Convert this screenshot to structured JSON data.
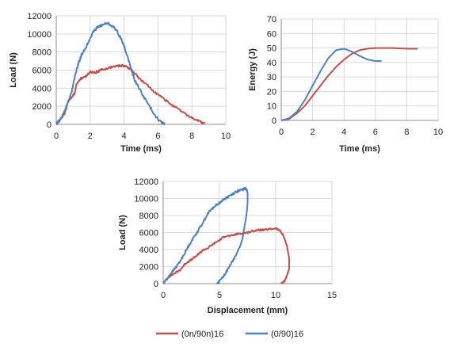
{
  "colors": {
    "red_series": "#c0504d",
    "blue_series": "#4f81bd",
    "grid": "#d9d9d9",
    "axis": "#8c8c8c"
  },
  "legend": {
    "items": [
      {
        "label": "(0n/90n)16",
        "color": "#c0504d"
      },
      {
        "label": "(0/90)16",
        "color": "#4f81bd"
      }
    ]
  },
  "chart_data": [
    {
      "id": "load_time",
      "type": "line",
      "title": "",
      "xlabel": "Time (ms)",
      "ylabel": "Load (N)",
      "xlim": [
        0,
        10
      ],
      "ylim": [
        0,
        12000
      ],
      "xticks": [
        0,
        2,
        4,
        6,
        8,
        10
      ],
      "yticks": [
        0,
        2000,
        4000,
        6000,
        8000,
        10000,
        12000
      ],
      "ytick_labels": [
        "0",
        "2000",
        "4000",
        "6000",
        "8000",
        "10000",
        "12000"
      ],
      "grid": true,
      "series": [
        {
          "name": "(0n/90n)16",
          "color": "#c0504d",
          "x": [
            0,
            0.3,
            0.5,
            0.7,
            0.9,
            1.1,
            1.2,
            1.4,
            1.6,
            1.8,
            2.0,
            2.3,
            2.6,
            3.0,
            3.4,
            3.8,
            4.0,
            4.3,
            4.7,
            5.0,
            5.5,
            6.0,
            6.5,
            7.0,
            7.5,
            8.0,
            8.5,
            8.75
          ],
          "y": [
            0,
            700,
            1200,
            2500,
            3000,
            3500,
            4500,
            5000,
            5200,
            5400,
            5800,
            5700,
            6000,
            6200,
            6400,
            6500,
            6500,
            6200,
            5500,
            4900,
            4100,
            3300,
            2600,
            1900,
            1300,
            700,
            300,
            100
          ]
        },
        {
          "name": "(0/90)16",
          "color": "#4f81bd",
          "x": [
            0,
            0.3,
            0.6,
            0.9,
            1.1,
            1.3,
            1.5,
            1.8,
            2.1,
            2.4,
            2.7,
            3.0,
            3.3,
            3.6,
            4.0,
            4.3,
            4.6,
            5.0,
            5.4,
            5.8,
            6.1,
            6.3,
            6.4
          ],
          "y": [
            0,
            700,
            2000,
            3500,
            5300,
            6700,
            7700,
            8700,
            10000,
            10700,
            11000,
            11200,
            10900,
            10300,
            8700,
            6900,
            5000,
            3600,
            2300,
            1100,
            400,
            100,
            0
          ]
        }
      ]
    },
    {
      "id": "energy_time",
      "type": "line",
      "title": "",
      "xlabel": "Time (ms)",
      "ylabel": "Energy (J)",
      "xlim": [
        0,
        10
      ],
      "ylim": [
        0,
        70
      ],
      "xticks": [
        0,
        2,
        4,
        6,
        8,
        10
      ],
      "yticks": [
        0,
        10,
        20,
        30,
        40,
        50,
        60,
        70
      ],
      "ytick_labels": [
        "0",
        "10",
        "20",
        "30",
        "40",
        "50",
        "60",
        "70"
      ],
      "grid": true,
      "series": [
        {
          "name": "(0n/90n)16",
          "color": "#c0504d",
          "x": [
            0,
            0.5,
            1.0,
            1.5,
            2.0,
            2.5,
            3.0,
            3.5,
            4.0,
            4.5,
            5.0,
            5.5,
            6.0,
            7.0,
            8.0,
            8.7
          ],
          "y": [
            0,
            1,
            5,
            10,
            17,
            24,
            31,
            37,
            42,
            46,
            48.5,
            49.5,
            50,
            50,
            49.5,
            49.5
          ]
        },
        {
          "name": "(0/90)16",
          "color": "#4f81bd",
          "x": [
            0,
            0.5,
            1.0,
            1.5,
            2.0,
            2.5,
            3.0,
            3.5,
            4.0,
            4.5,
            5.0,
            5.5,
            6.0,
            6.4
          ],
          "y": [
            0,
            1.5,
            6,
            14,
            24,
            34,
            43,
            48.5,
            49.5,
            47.5,
            44.5,
            42,
            41,
            41
          ]
        }
      ]
    },
    {
      "id": "load_displacement",
      "type": "line",
      "title": "",
      "xlabel": "Displacement (mm)",
      "ylabel": "Load (N)",
      "xlim": [
        0,
        15
      ],
      "ylim": [
        0,
        12000
      ],
      "xticks": [
        0,
        5,
        10,
        15
      ],
      "yticks": [
        0,
        2000,
        4000,
        6000,
        8000,
        10000,
        12000
      ],
      "ytick_labels": [
        "0",
        "2000",
        "4000",
        "6000",
        "8000",
        "10000",
        "12000"
      ],
      "grid": true,
      "series": [
        {
          "name": "(0n/90n)16",
          "color": "#c0504d",
          "x": [
            0,
            0.5,
            1.0,
            1.5,
            2.0,
            2.5,
            3.0,
            3.5,
            4.0,
            4.5,
            5.0,
            5.5,
            6.0,
            6.5,
            7.0,
            7.5,
            8.0,
            8.5,
            9.0,
            9.5,
            10.0,
            10.4,
            10.7,
            11.0,
            11.2,
            11.2,
            11.0,
            10.8,
            10.5
          ],
          "y": [
            0,
            800,
            1200,
            1600,
            2400,
            2800,
            3300,
            3900,
            4200,
            4700,
            5100,
            5600,
            5600,
            5800,
            5900,
            6000,
            6200,
            6300,
            6300,
            6400,
            6500,
            6200,
            5600,
            4400,
            3000,
            1800,
            900,
            300,
            0
          ]
        },
        {
          "name": "(0/90)16",
          "color": "#4f81bd",
          "x": [
            0,
            0.5,
            1.0,
            1.5,
            2.0,
            2.5,
            3.0,
            3.5,
            4.0,
            4.5,
            5.0,
            5.5,
            6.0,
            6.5,
            7.0,
            7.3,
            7.5,
            7.5,
            7.4,
            7.2,
            7.0,
            6.6,
            6.2,
            5.8,
            5.4,
            5.0,
            4.8
          ],
          "y": [
            0,
            900,
            1700,
            2600,
            3800,
            5000,
            6000,
            7100,
            8300,
            9000,
            9500,
            10000,
            10400,
            10800,
            11000,
            11200,
            10800,
            9500,
            8000,
            6500,
            5000,
            3700,
            2700,
            1800,
            900,
            300,
            0
          ]
        }
      ]
    }
  ]
}
